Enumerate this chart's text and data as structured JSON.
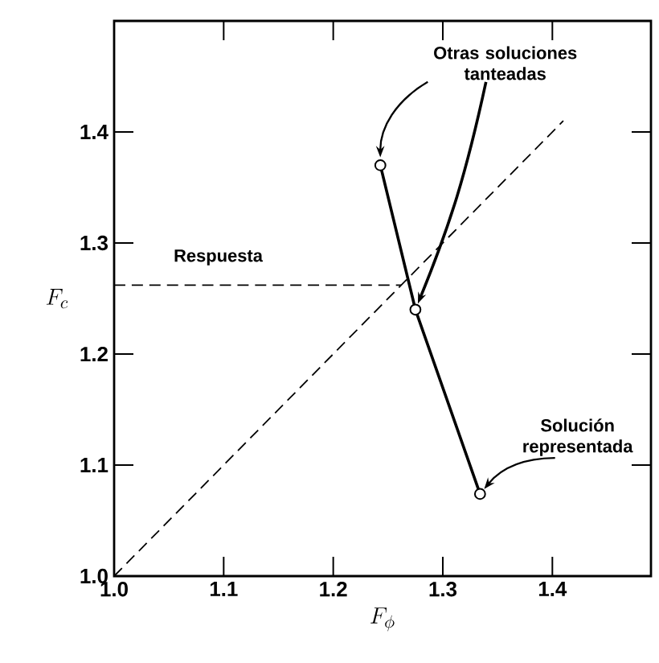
{
  "chart_data": {
    "type": "line",
    "xlabel": "F_\\phi",
    "ylabel": "F_c",
    "xlim": [
      1.0,
      1.49
    ],
    "ylim": [
      1.0,
      1.5
    ],
    "xticks": [
      {
        "value": 1.0,
        "label": "1.0"
      },
      1.1,
      1.2,
      1.3,
      1.4
    ],
    "yticks": [
      {
        "value": 1.0,
        "label": "1.0"
      },
      1.1,
      1.2,
      1.3,
      1.4
    ],
    "grid": false,
    "series": [
      {
        "color": "#000000",
        "x": [
          1.243,
          1.275,
          1.334
        ],
        "values": [
          1.37,
          1.24,
          1.074
        ],
        "marker": "circle",
        "line_style": "solid"
      },
      {
        "color": "#000000",
        "x": [
          1.0,
          1.41
        ],
        "values": [
          1.0,
          1.41
        ],
        "marker": "none",
        "line_style": "dashed"
      },
      {
        "color": "#000000",
        "x": [
          1.0,
          1.262
        ],
        "values": [
          1.262,
          1.262
        ],
        "marker": "none",
        "line_style": "dashed"
      }
    ],
    "annotations": [
      {
        "text": "Otras soluciones tanteadas",
        "x": 1.275,
        "y": 1.24
      },
      "Respuesta",
      {
        "text": "Solución representada",
        "x": 1.334,
        "y": 1.074
      }
    ]
  }
}
